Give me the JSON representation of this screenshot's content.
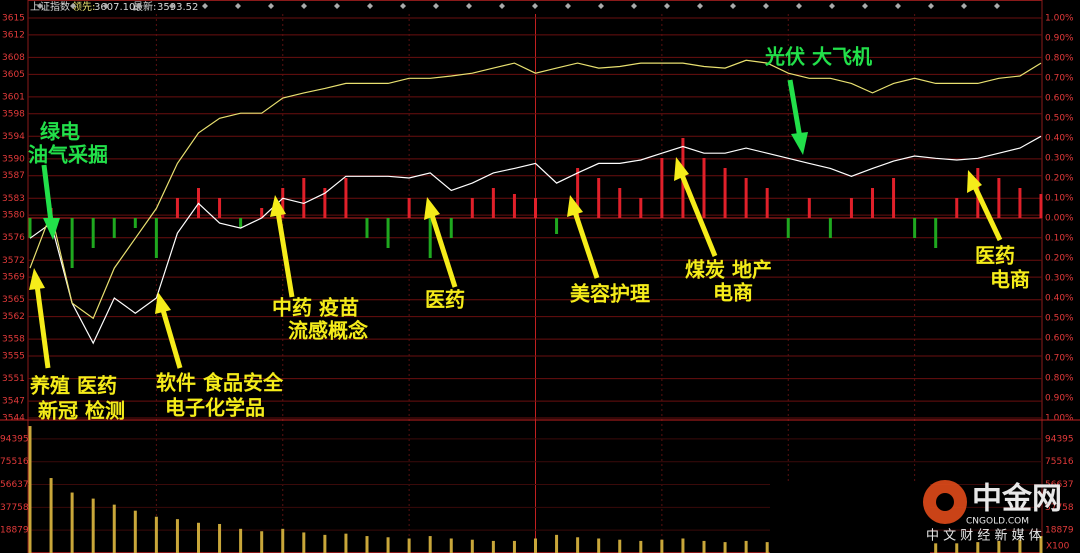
{
  "chart_data": {
    "type": "line",
    "title": "上证指数",
    "header": [
      {
        "label": "领先:",
        "value": "3607.10"
      },
      {
        "label": "最新:",
        "value": "3593.52"
      }
    ],
    "series": [
      {
        "color": "#ffffff",
        "values": [
          3575.9,
          3578.6,
          3564.4,
          3557.3,
          3565.3,
          3562.6,
          3565.3,
          3576.8,
          3582.1,
          3578.6,
          3577.7,
          3579.5,
          3583.0,
          3582.1,
          3583.9,
          3586.9,
          3586.9,
          3586.9,
          3586.6,
          3587.5,
          3584.4,
          3585.7,
          3587.5,
          3588.3,
          3589.2,
          3585.7,
          3587.5,
          3589.2,
          3589.2,
          3589.8,
          3591.0,
          3592.2,
          3591.0,
          3591.0,
          3591.9,
          3591.0,
          3590.1,
          3589.2,
          3588.3,
          3586.9,
          3588.3,
          3589.6,
          3590.5,
          3590.1,
          3589.8,
          3590.1,
          3591.0,
          3591.9,
          3594.0
        ]
      },
      {
        "color": "#e8e070",
        "values": [
          3570.6,
          3580.4,
          3564.4,
          3561.7,
          3570.6,
          3575.9,
          3581.2,
          3589.2,
          3594.6,
          3597.2,
          3598.1,
          3598.1,
          3600.8,
          3601.7,
          3602.5,
          3603.4,
          3603.4,
          3603.4,
          3604.3,
          3604.3,
          3604.7,
          3605.2,
          3606.1,
          3607.0,
          3605.2,
          3606.1,
          3607.0,
          3606.1,
          3606.4,
          3607.0,
          3607.0,
          3607.0,
          3606.4,
          3606.1,
          3607.5,
          3607.0,
          3605.2,
          3604.3,
          3604.3,
          3603.4,
          3601.7,
          3603.4,
          3604.3,
          3603.4,
          3603.4,
          3603.4,
          3604.3,
          3604.7,
          3607.0
        ]
      }
    ],
    "ylim": [
      3544,
      3615
    ],
    "yticks": [
      3615,
      3612,
      3608,
      3605,
      3601,
      3598,
      3594,
      3590,
      3587,
      3583,
      3580,
      3576,
      3572,
      3569,
      3565,
      3562,
      3558,
      3555,
      3551,
      3547,
      3544
    ],
    "y2lim": [
      -1,
      1
    ],
    "y2ticks": [
      {
        "value": 1,
        "label": "1.00%"
      },
      {
        "value": 0.9,
        "label": "0.90%"
      },
      {
        "value": 0.8,
        "label": "0.80%"
      },
      {
        "value": 0.7,
        "label": "0.70%"
      },
      {
        "value": 0.6,
        "label": "0.60%"
      },
      {
        "value": 0.5,
        "label": "0.50%"
      },
      {
        "value": 0.4,
        "label": "0.40%"
      },
      {
        "value": 0.3,
        "label": "0.30%"
      },
      {
        "value": 0.2,
        "label": "0.20%"
      },
      {
        "value": 0.1,
        "label": "0.10%"
      },
      {
        "value": 0,
        "label": "0.00%"
      },
      {
        "value": -0.1,
        "label": "0.10%"
      },
      {
        "value": -0.2,
        "label": "0.20%"
      },
      {
        "value": -0.3,
        "label": "0.30%"
      },
      {
        "value": -0.4,
        "label": "0.40%"
      },
      {
        "value": -0.5,
        "label": "0.50%"
      },
      {
        "value": -0.6,
        "label": "0.60%"
      },
      {
        "value": -0.7,
        "label": "0.70%"
      },
      {
        "value": -0.8,
        "label": "0.80%"
      },
      {
        "value": -0.9,
        "label": "0.90%"
      },
      {
        "value": -1,
        "label": "1.00%"
      }
    ],
    "bars": {
      "colors": [
        "#e0202a",
        "#1fa81f"
      ],
      "values": [
        -0.1,
        0.05,
        -0.25,
        -0.15,
        -0.1,
        -0.05,
        -0.2,
        0.1,
        0.15,
        0.1,
        -0.05,
        0.05,
        0.15,
        0.2,
        0.15,
        0.2,
        -0.1,
        -0.15,
        0.1,
        -0.2,
        -0.1,
        0.1,
        0.15,
        0.12,
        0.1,
        -0.08,
        0.25,
        0.2,
        0.15,
        0.1,
        0.3,
        0.4,
        0.3,
        0.25,
        0.2,
        0.15,
        -0.1,
        0.1,
        -0.1,
        0.1,
        0.15,
        0.2,
        -0.1,
        -0.15,
        0.1,
        0.25,
        0.2,
        0.15,
        0.12
      ]
    },
    "volume": {
      "color": "#c9a73a",
      "ylim": [
        0,
        110000
      ],
      "yticks": [
        94395,
        75516,
        56637,
        37758,
        18879
      ],
      "unit": "X100",
      "values": [
        105000,
        62000,
        50000,
        45000,
        40000,
        35000,
        30000,
        28000,
        25000,
        24000,
        20000,
        18000,
        20000,
        17000,
        15000,
        16000,
        14000,
        13000,
        12000,
        14000,
        12000,
        11000,
        10000,
        10000,
        12000,
        15000,
        13000,
        12000,
        11000,
        10000,
        11000,
        12000,
        10000,
        9000,
        10000,
        9000,
        9000,
        8000,
        8000,
        9000,
        8000,
        8000,
        9000,
        8000,
        8000,
        9000,
        10000,
        11000,
        14000
      ]
    },
    "annotations": [
      "绿电",
      "油气采掘",
      "光伏 大飞机",
      "养殖 医药",
      "新冠 检测",
      "软件 食品安全",
      "电子化学品",
      "中药 疫苗",
      "流感概念",
      "医药",
      "美容护理",
      "煤炭 地产",
      "电商",
      "医药",
      "电商"
    ],
    "watermark": {
      "brand": "中金网",
      "domain": "CNGOLD.COM",
      "slogan": "中 文 财 经 新 媒 体"
    }
  }
}
